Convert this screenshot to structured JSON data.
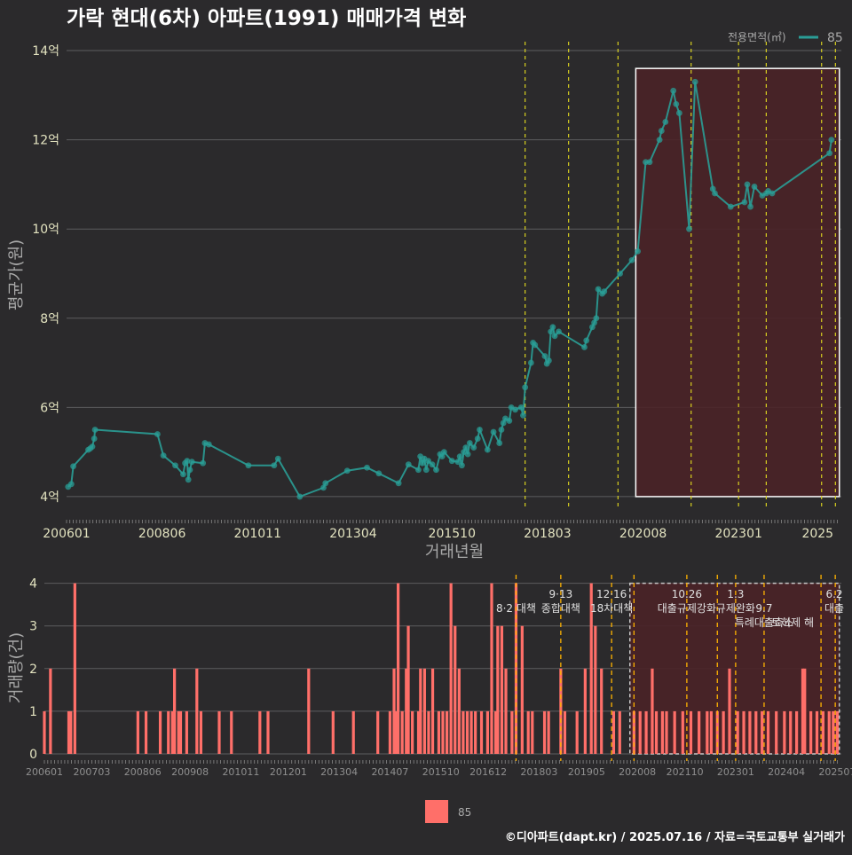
{
  "title": "가락 현대(6차) 아파트(1991) 매매가격 변화",
  "legend_top": {
    "title": "전용면적(㎡)",
    "label": "85"
  },
  "legend_bottom": {
    "label": "85"
  },
  "footer": "©디아파트(dapt.kr) / 2025.07.16 / 자료=국토교통부 실거래가",
  "colors": {
    "background": "#2b2a2c",
    "series": "#2a9d96",
    "bars": "#ff6f69",
    "vline": "#d8d020",
    "vline_bottom": "#ffb300",
    "highlight_fill": "#4a2227",
    "highlight_border": "#ffffff"
  },
  "chart_data": [
    {
      "type": "line",
      "title": "가락 현대(6차) 아파트(1991) 매매가격 변화",
      "xlabel": "거래년월",
      "ylabel": "평균가(원)",
      "x_ticks": [
        "200601",
        "200806",
        "201011",
        "201304",
        "201510",
        "201803",
        "202008",
        "202301",
        "2025"
      ],
      "y_ticks": [
        "4억",
        "6억",
        "8억",
        "10억",
        "12억",
        "14억"
      ],
      "xlim": [
        2006.0,
        2025.6
      ],
      "ylim": [
        3.7,
        14.2
      ],
      "y_unit": "억",
      "grid": true,
      "legend_position": "top-right",
      "series": [
        {
          "name": "85",
          "points": [
            [
              2006.04,
              4.22
            ],
            [
              2006.12,
              4.28
            ],
            [
              2006.17,
              4.68
            ],
            [
              2006.55,
              5.05
            ],
            [
              2006.6,
              5.08
            ],
            [
              2006.65,
              5.12
            ],
            [
              2006.7,
              5.3
            ],
            [
              2006.72,
              5.5
            ],
            [
              2008.3,
              5.4
            ],
            [
              2008.45,
              4.92
            ],
            [
              2008.75,
              4.7
            ],
            [
              2008.95,
              4.5
            ],
            [
              2009.0,
              4.75
            ],
            [
              2009.05,
              4.8
            ],
            [
              2009.08,
              4.38
            ],
            [
              2009.12,
              4.6
            ],
            [
              2009.17,
              4.78
            ],
            [
              2009.45,
              4.75
            ],
            [
              2009.5,
              5.2
            ],
            [
              2009.6,
              5.17
            ],
            [
              2010.6,
              4.7
            ],
            [
              2011.25,
              4.7
            ],
            [
              2011.35,
              4.85
            ],
            [
              2011.9,
              4.0
            ],
            [
              2012.5,
              4.2
            ],
            [
              2012.55,
              4.3
            ],
            [
              2013.1,
              4.58
            ],
            [
              2013.6,
              4.65
            ],
            [
              2013.9,
              4.52
            ],
            [
              2014.4,
              4.3
            ],
            [
              2014.65,
              4.72
            ],
            [
              2014.9,
              4.6
            ],
            [
              2014.95,
              4.9
            ],
            [
              2015.0,
              4.75
            ],
            [
              2015.05,
              4.85
            ],
            [
              2015.1,
              4.6
            ],
            [
              2015.15,
              4.8
            ],
            [
              2015.25,
              4.72
            ],
            [
              2015.35,
              4.6
            ],
            [
              2015.45,
              4.95
            ],
            [
              2015.5,
              4.9
            ],
            [
              2015.55,
              5.0
            ],
            [
              2015.75,
              4.8
            ],
            [
              2015.9,
              4.78
            ],
            [
              2015.95,
              4.9
            ],
            [
              2016.0,
              4.7
            ],
            [
              2016.05,
              5.0
            ],
            [
              2016.1,
              5.1
            ],
            [
              2016.15,
              4.95
            ],
            [
              2016.2,
              5.2
            ],
            [
              2016.3,
              5.1
            ],
            [
              2016.4,
              5.3
            ],
            [
              2016.45,
              5.5
            ],
            [
              2016.65,
              5.05
            ],
            [
              2016.8,
              5.45
            ],
            [
              2016.95,
              5.2
            ],
            [
              2017.0,
              5.5
            ],
            [
              2017.05,
              5.65
            ],
            [
              2017.1,
              5.75
            ],
            [
              2017.2,
              5.7
            ],
            [
              2017.25,
              6.0
            ],
            [
              2017.35,
              5.95
            ],
            [
              2017.5,
              6.0
            ],
            [
              2017.55,
              5.82
            ],
            [
              2017.6,
              6.45
            ],
            [
              2017.75,
              7.0
            ],
            [
              2017.8,
              7.45
            ],
            [
              2017.85,
              7.4
            ],
            [
              2018.1,
              7.15
            ],
            [
              2018.15,
              6.98
            ],
            [
              2018.2,
              7.05
            ],
            [
              2018.25,
              7.7
            ],
            [
              2018.3,
              7.8
            ],
            [
              2018.35,
              7.6
            ],
            [
              2018.45,
              7.7
            ],
            [
              2019.1,
              7.35
            ],
            [
              2019.15,
              7.5
            ],
            [
              2019.3,
              7.8
            ],
            [
              2019.35,
              7.9
            ],
            [
              2019.4,
              8.0
            ],
            [
              2019.45,
              8.65
            ],
            [
              2019.55,
              8.55
            ],
            [
              2019.6,
              8.6
            ],
            [
              2020.0,
              9.0
            ],
            [
              2020.3,
              9.3
            ],
            [
              2020.45,
              9.5
            ],
            [
              2020.65,
              11.5
            ],
            [
              2020.75,
              11.5
            ],
            [
              2021.0,
              12.0
            ],
            [
              2021.05,
              12.2
            ],
            [
              2021.15,
              12.4
            ],
            [
              2021.35,
              13.1
            ],
            [
              2021.42,
              12.8
            ],
            [
              2021.5,
              12.6
            ],
            [
              2021.75,
              10.0
            ],
            [
              2021.9,
              13.3
            ],
            [
              2022.35,
              10.9
            ],
            [
              2022.4,
              10.8
            ],
            [
              2022.8,
              10.5
            ],
            [
              2023.15,
              10.6
            ],
            [
              2023.22,
              11.0
            ],
            [
              2023.3,
              10.5
            ],
            [
              2023.4,
              10.95
            ],
            [
              2023.6,
              10.75
            ],
            [
              2023.7,
              10.8
            ],
            [
              2023.75,
              10.85
            ],
            [
              2023.85,
              10.8
            ],
            [
              2025.3,
              11.7
            ],
            [
              2025.35,
              12.0
            ]
          ]
        }
      ],
      "vlines": [
        2017.6,
        2018.7,
        2019.95,
        2021.8,
        2023.0,
        2023.7,
        2025.1,
        2025.45
      ],
      "highlight_range": {
        "x": [
          2020.4,
          2025.55
        ],
        "y": [
          4.0,
          13.6
        ]
      }
    },
    {
      "type": "bar",
      "ylabel": "거래량(건)",
      "x_ticks": [
        "200601",
        "200703",
        "200806",
        "200908",
        "201011",
        "201201",
        "201304",
        "201407",
        "201510",
        "201612",
        "201803",
        "201905",
        "202008",
        "202110",
        "202301",
        "202404",
        "202507"
      ],
      "y_ticks": [
        "0",
        "1",
        "2",
        "3",
        "4"
      ],
      "xlim": [
        2006.0,
        2025.6
      ],
      "ylim": [
        0,
        4.2
      ],
      "legend_position": "bottom-center",
      "series": [
        {
          "name": "85",
          "bars": [
            [
              2006.0,
              1
            ],
            [
              2006.15,
              2
            ],
            [
              2006.6,
              1
            ],
            [
              2006.65,
              1
            ],
            [
              2006.75,
              4
            ],
            [
              2008.3,
              1
            ],
            [
              2008.5,
              1
            ],
            [
              2008.85,
              1
            ],
            [
              2009.05,
              1
            ],
            [
              2009.15,
              1
            ],
            [
              2009.2,
              2
            ],
            [
              2009.3,
              1
            ],
            [
              2009.35,
              1
            ],
            [
              2009.5,
              1
            ],
            [
              2009.75,
              2
            ],
            [
              2009.85,
              1
            ],
            [
              2010.3,
              1
            ],
            [
              2010.6,
              1
            ],
            [
              2011.3,
              1
            ],
            [
              2011.5,
              1
            ],
            [
              2012.5,
              2
            ],
            [
              2013.1,
              1
            ],
            [
              2013.6,
              1
            ],
            [
              2014.2,
              1
            ],
            [
              2014.5,
              1
            ],
            [
              2014.6,
              2
            ],
            [
              2014.65,
              1
            ],
            [
              2014.7,
              4
            ],
            [
              2014.8,
              1
            ],
            [
              2014.9,
              2
            ],
            [
              2014.95,
              3
            ],
            [
              2015.05,
              1
            ],
            [
              2015.2,
              1
            ],
            [
              2015.25,
              2
            ],
            [
              2015.35,
              2
            ],
            [
              2015.45,
              1
            ],
            [
              2015.55,
              2
            ],
            [
              2015.7,
              1
            ],
            [
              2015.8,
              1
            ],
            [
              2015.9,
              1
            ],
            [
              2016.0,
              4
            ],
            [
              2016.1,
              3
            ],
            [
              2016.2,
              2
            ],
            [
              2016.3,
              1
            ],
            [
              2016.4,
              1
            ],
            [
              2016.5,
              1
            ],
            [
              2016.6,
              1
            ],
            [
              2016.75,
              1
            ],
            [
              2016.9,
              1
            ],
            [
              2017.0,
              4
            ],
            [
              2017.1,
              1
            ],
            [
              2017.15,
              3
            ],
            [
              2017.25,
              3
            ],
            [
              2017.35,
              2
            ],
            [
              2017.5,
              1
            ],
            [
              2017.6,
              4
            ],
            [
              2017.75,
              3
            ],
            [
              2017.9,
              1
            ],
            [
              2018.0,
              1
            ],
            [
              2018.3,
              1
            ],
            [
              2018.4,
              1
            ],
            [
              2018.7,
              2
            ],
            [
              2018.8,
              1
            ],
            [
              2019.1,
              1
            ],
            [
              2019.3,
              2
            ],
            [
              2019.45,
              4
            ],
            [
              2019.55,
              3
            ],
            [
              2019.7,
              2
            ],
            [
              2020.0,
              1
            ],
            [
              2020.15,
              1
            ],
            [
              2020.5,
              1
            ],
            [
              2020.65,
              1
            ],
            [
              2020.8,
              1
            ],
            [
              2020.95,
              2
            ],
            [
              2021.05,
              1
            ],
            [
              2021.2,
              1
            ],
            [
              2021.3,
              1
            ],
            [
              2021.5,
              1
            ],
            [
              2021.7,
              1
            ],
            [
              2021.9,
              1
            ],
            [
              2022.1,
              1
            ],
            [
              2022.3,
              1
            ],
            [
              2022.4,
              1
            ],
            [
              2022.55,
              1
            ],
            [
              2022.7,
              1
            ],
            [
              2022.85,
              2
            ],
            [
              2023.05,
              1
            ],
            [
              2023.2,
              1
            ],
            [
              2023.35,
              1
            ],
            [
              2023.5,
              1
            ],
            [
              2023.65,
              1
            ],
            [
              2023.8,
              1
            ],
            [
              2024.0,
              1
            ],
            [
              2024.2,
              1
            ],
            [
              2024.35,
              1
            ],
            [
              2024.5,
              1
            ],
            [
              2024.65,
              2
            ],
            [
              2024.7,
              2
            ],
            [
              2024.85,
              1
            ],
            [
              2025.0,
              1
            ],
            [
              2025.15,
              1
            ],
            [
              2025.3,
              1
            ],
            [
              2025.4,
              1
            ],
            [
              2025.5,
              1
            ]
          ]
        }
      ],
      "vlines": [
        2017.6,
        2018.7,
        2019.95,
        2020.5,
        2021.8,
        2022.55,
        2023.0,
        2023.7,
        2025.1,
        2025.45
      ],
      "highlight_range": {
        "x": [
          2020.4,
          2025.55
        ],
        "y": [
          0,
          4.0
        ]
      },
      "annotations": [
        {
          "x": 2017.6,
          "row": 0,
          "text": "8·2 대책"
        },
        {
          "x": 2018.7,
          "row": -1,
          "text": "9·13"
        },
        {
          "x": 2018.7,
          "row": 0,
          "text": "종합대책"
        },
        {
          "x": 2019.95,
          "row": -1,
          "text": "12·16"
        },
        {
          "x": 2019.95,
          "row": 0,
          "text": "18차대책"
        },
        {
          "x": 2021.8,
          "row": -1,
          "text": "10.26"
        },
        {
          "x": 2021.8,
          "row": 0,
          "text": "대출규제강화"
        },
        {
          "x": 2023.0,
          "row": -1,
          "text": "1.3"
        },
        {
          "x": 2023.0,
          "row": 0,
          "text": "규제완화"
        },
        {
          "x": 2023.7,
          "row": 0,
          "text": "9.7"
        },
        {
          "x": 2023.7,
          "row": 1,
          "text": "특례대출축소"
        },
        {
          "x": 2024.4,
          "row": 1,
          "text": "토허제 해"
        },
        {
          "x": 2025.45,
          "row": -1,
          "text": "6.2"
        },
        {
          "x": 2025.45,
          "row": 0,
          "text": "대출"
        }
      ]
    }
  ]
}
